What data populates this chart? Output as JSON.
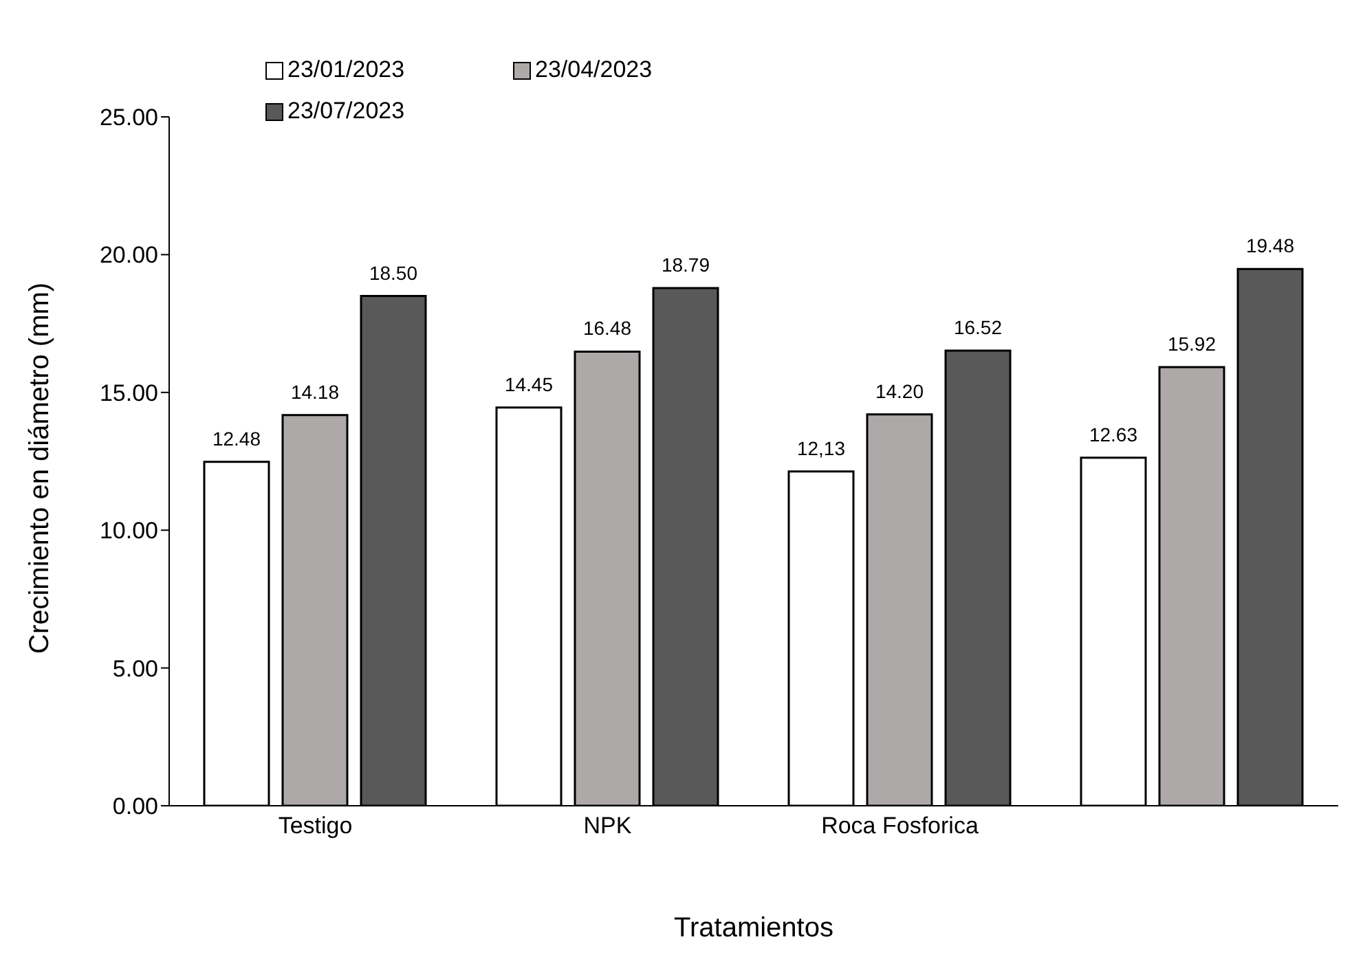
{
  "chart_data": {
    "type": "bar",
    "categories": [
      "Testigo",
      "NPK",
      "Roca Fosforica",
      null
    ],
    "series": [
      {
        "name": "23/01/2023",
        "color": "#ffffff",
        "values": [
          12.48,
          14.45,
          12.13,
          12.63
        ],
        "value_labels": [
          "12.48",
          "14.45",
          "12,13",
          "12.63"
        ]
      },
      {
        "name": "23/04/2023",
        "color": "#aea9a9",
        "values": [
          14.18,
          16.48,
          14.2,
          15.92
        ],
        "value_labels": [
          "14.18",
          "16.48",
          "14.20",
          "15.92"
        ]
      },
      {
        "name": "23/07/2023",
        "color": "#595959",
        "values": [
          18.5,
          18.79,
          16.52,
          19.48
        ],
        "value_labels": [
          "18.50",
          "18.79",
          "16.52",
          "19.48"
        ]
      }
    ],
    "xlabel": "Tratamientos",
    "ylabel": "Crecimiento en diámetro (mm)",
    "ylim": [
      0,
      25
    ],
    "yticks": [
      {
        "value": 0,
        "label": "0.00"
      },
      {
        "value": 5,
        "label": "5.00"
      },
      {
        "value": 10,
        "label": "10.00"
      },
      {
        "value": 15,
        "label": "15.00"
      },
      {
        "value": 20,
        "label": "20.00"
      },
      {
        "value": 25,
        "label": "25.00"
      }
    ],
    "grid": false,
    "legend": "top left"
  }
}
